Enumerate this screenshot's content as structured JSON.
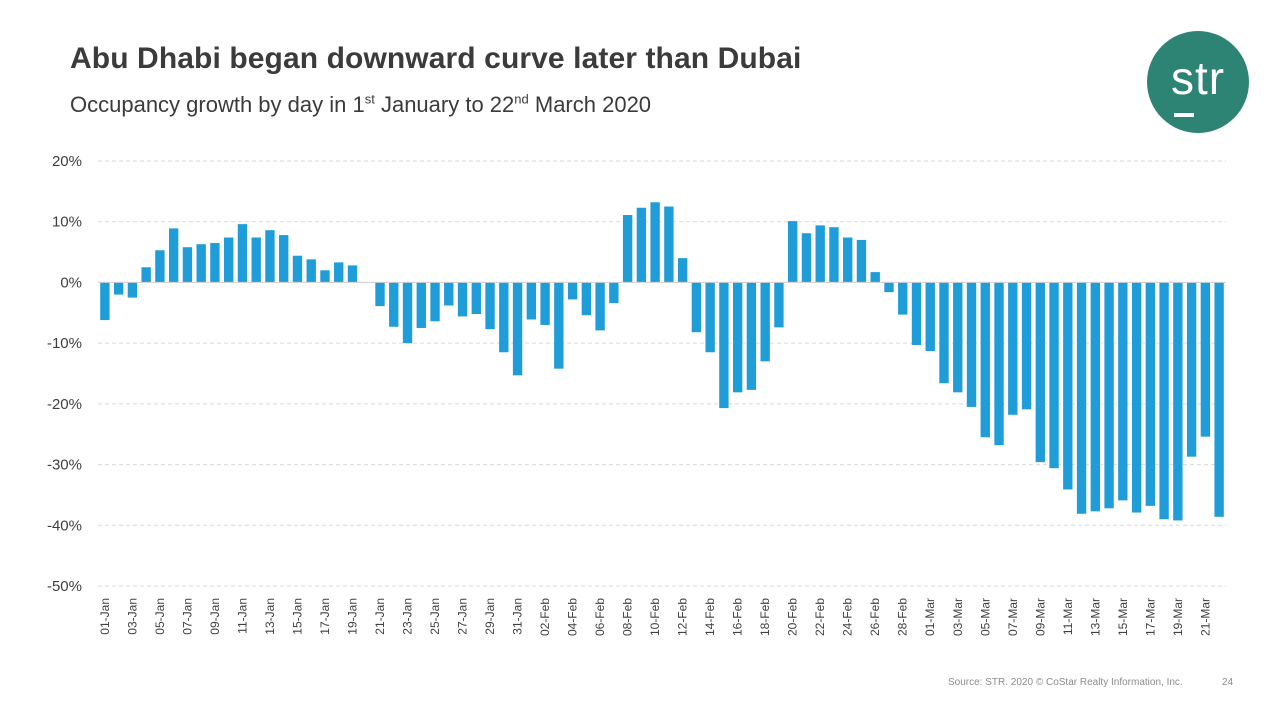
{
  "slide": {
    "title": "Abu Dhabi began downward curve later than Dubai",
    "subtitle_prefix": "Occupancy growth by day in 1",
    "subtitle_sup1": "st",
    "subtitle_middle": " January to 22",
    "subtitle_sup2": "nd",
    "subtitle_suffix": " March 2020",
    "logo_text": "str",
    "source": "Source: STR. 2020 © CoStar Realty Information, Inc.",
    "page_number": "24"
  },
  "colors": {
    "bar": "#1f9dd9",
    "grid": "#d9d9d9",
    "axis_text": "#404040",
    "logo_bg": "#2d8474"
  },
  "chart_data": {
    "type": "bar",
    "title": "Occupancy growth by day in 1st January to 22nd March 2020",
    "xlabel": "",
    "ylabel": "",
    "ylim": [
      -50,
      20
    ],
    "yticks": [
      20,
      10,
      0,
      -10,
      -20,
      -30,
      -40,
      -50
    ],
    "ytick_labels": [
      "20%",
      "10%",
      "0%",
      "-10%",
      "-20%",
      "-30%",
      "-40%",
      "-50%"
    ],
    "grid": true,
    "categories": [
      "01-Jan",
      "02-Jan",
      "03-Jan",
      "04-Jan",
      "05-Jan",
      "06-Jan",
      "07-Jan",
      "08-Jan",
      "09-Jan",
      "10-Jan",
      "11-Jan",
      "12-Jan",
      "13-Jan",
      "14-Jan",
      "15-Jan",
      "16-Jan",
      "17-Jan",
      "18-Jan",
      "19-Jan",
      "20-Jan",
      "21-Jan",
      "22-Jan",
      "23-Jan",
      "24-Jan",
      "25-Jan",
      "26-Jan",
      "27-Jan",
      "28-Jan",
      "29-Jan",
      "30-Jan",
      "31-Jan",
      "01-Feb",
      "02-Feb",
      "03-Feb",
      "04-Feb",
      "05-Feb",
      "06-Feb",
      "07-Feb",
      "08-Feb",
      "09-Feb",
      "10-Feb",
      "11-Feb",
      "12-Feb",
      "13-Feb",
      "14-Feb",
      "15-Feb",
      "16-Feb",
      "17-Feb",
      "18-Feb",
      "19-Feb",
      "20-Feb",
      "21-Feb",
      "22-Feb",
      "23-Feb",
      "24-Feb",
      "25-Feb",
      "26-Feb",
      "27-Feb",
      "28-Feb",
      "29-Feb",
      "01-Mar",
      "02-Mar",
      "03-Mar",
      "04-Mar",
      "05-Mar",
      "06-Mar",
      "07-Mar",
      "08-Mar",
      "09-Mar",
      "10-Mar",
      "11-Mar",
      "12-Mar",
      "13-Mar",
      "14-Mar",
      "15-Mar",
      "16-Mar",
      "17-Mar",
      "18-Mar",
      "19-Mar",
      "20-Mar",
      "21-Mar",
      "22-Mar"
    ],
    "tick_labels": [
      "01-Jan",
      "03-Jan",
      "05-Jan",
      "07-Jan",
      "09-Jan",
      "11-Jan",
      "13-Jan",
      "15-Jan",
      "17-Jan",
      "19-Jan",
      "21-Jan",
      "23-Jan",
      "25-Jan",
      "27-Jan",
      "29-Jan",
      "31-Jan",
      "02-Feb",
      "04-Feb",
      "06-Feb",
      "08-Feb",
      "10-Feb",
      "12-Feb",
      "14-Feb",
      "16-Feb",
      "18-Feb",
      "20-Feb",
      "22-Feb",
      "24-Feb",
      "26-Feb",
      "28-Feb",
      "01-Mar",
      "03-Mar",
      "05-Mar",
      "07-Mar",
      "09-Mar",
      "11-Mar",
      "13-Mar",
      "15-Mar",
      "17-Mar",
      "19-Mar",
      "21-Mar"
    ],
    "values": [
      -6.2,
      -2.0,
      -2.5,
      2.5,
      5.3,
      8.9,
      5.8,
      6.3,
      6.5,
      7.4,
      9.6,
      7.4,
      8.6,
      7.8,
      4.4,
      3.8,
      2.0,
      3.3,
      2.8,
      0,
      -3.9,
      -7.3,
      -10.0,
      -7.5,
      -6.4,
      -3.8,
      -5.6,
      -5.2,
      -7.7,
      -11.5,
      -15.3,
      -6.1,
      -7.0,
      -14.2,
      -2.8,
      -5.4,
      -7.9,
      -3.4,
      11.1,
      12.3,
      13.2,
      12.5,
      4.0,
      -8.2,
      -11.5,
      -20.7,
      -18.1,
      -17.7,
      -13.0,
      -7.4,
      10.1,
      8.1,
      9.4,
      9.1,
      7.4,
      7.0,
      1.7,
      -1.6,
      -5.3,
      -10.3,
      -11.3,
      -16.6,
      -18.1,
      -20.5,
      -25.5,
      -26.8,
      -21.8,
      -20.9,
      -29.6,
      -30.6,
      -34.1,
      -38.1,
      -37.7,
      -37.2,
      -35.9,
      -37.9,
      -36.8,
      -39.0,
      -39.2,
      -28.7,
      -25.4,
      -38.6
    ]
  }
}
